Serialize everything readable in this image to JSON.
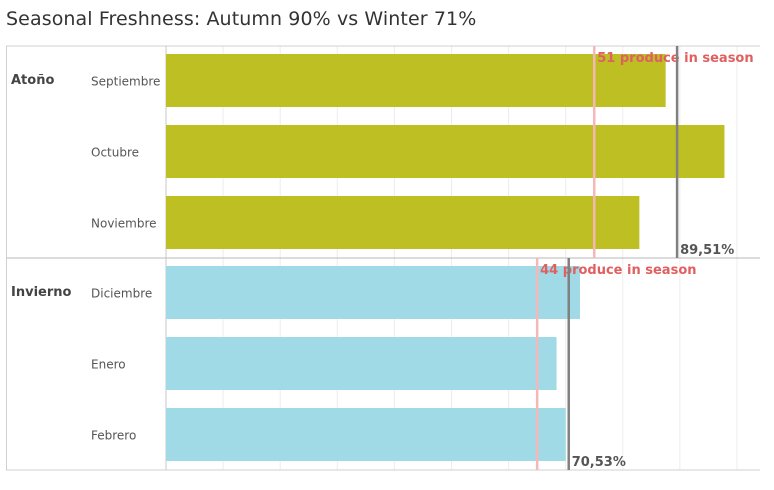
{
  "chart_data": {
    "type": "bar",
    "orientation": "horizontal",
    "title": "Seasonal Freshness: Autumn 90% vs Winter 71%",
    "xlabel": "",
    "ylabel": "",
    "xlim": [
      0,
      1.0
    ],
    "grid": true,
    "colors": {
      "autumn": "#bdbf22",
      "winter": "#a0dae6",
      "reference_line": "#808080",
      "annotation_line": "#f4b8b8",
      "annotation_text": "#e06060"
    },
    "groups": [
      {
        "name": "Atoño",
        "color": "autumn",
        "categories": [
          "Septiembre",
          "Octubre",
          "Noviembre"
        ],
        "values": [
          0.875,
          0.978,
          0.829
        ],
        "average_value": 0.8951,
        "average_label": "89,51%",
        "in_season_value": 0.75,
        "in_season_label": "51 produce in season"
      },
      {
        "name": "Invierno",
        "color": "winter",
        "categories": [
          "Diciembre",
          "Enero",
          "Febrero"
        ],
        "values": [
          0.725,
          0.684,
          0.7
        ],
        "average_value": 0.7053,
        "average_label": "70,53%",
        "in_season_value": 0.65,
        "in_season_label": "44 produce in season"
      }
    ]
  }
}
